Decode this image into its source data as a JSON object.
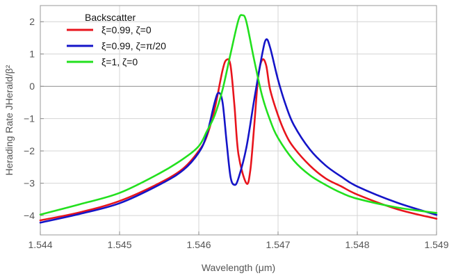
{
  "chart_data": {
    "type": "line",
    "title": "",
    "xlabel": "Wavelength (μm)",
    "ylabel": "Herading Rate  JHerald/β²",
    "xlim": [
      1.544,
      1.549
    ],
    "ylim": [
      -4.6,
      2.5
    ],
    "x_ticks": [
      "1.544",
      "1.545",
      "1.546",
      "1.547",
      "1.548",
      "1.549"
    ],
    "y_ticks": [
      "2",
      "1",
      "0",
      "−1",
      "−2",
      "−3",
      "−4"
    ],
    "x_tick_values": [
      1.544,
      1.545,
      1.546,
      1.547,
      1.548,
      1.549
    ],
    "y_tick_values": [
      2,
      1,
      0,
      -1,
      -2,
      -3,
      -4
    ],
    "grid": true,
    "legend": {
      "title": "Backscatter",
      "position": "top-left"
    },
    "series": [
      {
        "name": "ξ=0.99,  ζ=0",
        "color": "#e8141c",
        "x": [
          1.544,
          1.5445,
          1.545,
          1.5455,
          1.5458,
          1.546,
          1.5461,
          1.5462,
          1.5463,
          1.54635,
          1.5464,
          1.54645,
          1.5465,
          1.5466,
          1.54665,
          1.5467,
          1.54675,
          1.5468,
          1.54685,
          1.5469,
          1.547,
          1.5471,
          1.5472,
          1.5474,
          1.5476,
          1.5478,
          1.548,
          1.5485,
          1.549
        ],
        "y": [
          -4.15,
          -3.9,
          -3.55,
          -3.0,
          -2.55,
          -2.0,
          -1.55,
          -0.7,
          0.5,
          0.82,
          0.65,
          -0.6,
          -2.1,
          -3.0,
          -2.6,
          -1.2,
          0.3,
          0.82,
          0.65,
          -0.1,
          -0.9,
          -1.5,
          -1.9,
          -2.45,
          -2.85,
          -3.1,
          -3.35,
          -3.8,
          -4.1
        ]
      },
      {
        "name": "ξ=0.99,  ζ=π/20",
        "color": "#1414c8",
        "x": [
          1.544,
          1.5445,
          1.545,
          1.5455,
          1.5458,
          1.546,
          1.5461,
          1.5462,
          1.54625,
          1.5463,
          1.54635,
          1.5464,
          1.54645,
          1.5465,
          1.5466,
          1.5467,
          1.5468,
          1.54685,
          1.5469,
          1.547,
          1.5471,
          1.5472,
          1.5474,
          1.5476,
          1.5478,
          1.548,
          1.5485,
          1.549
        ],
        "y": [
          -4.22,
          -3.95,
          -3.62,
          -3.05,
          -2.6,
          -2.05,
          -1.5,
          -0.5,
          -0.2,
          -0.5,
          -1.7,
          -2.8,
          -3.05,
          -2.85,
          -1.9,
          -0.4,
          1.0,
          1.45,
          1.2,
          0.2,
          -0.6,
          -1.2,
          -1.95,
          -2.45,
          -2.8,
          -3.1,
          -3.6,
          -3.98
        ]
      },
      {
        "name": "ξ=1,  ζ=0",
        "color": "#22e01e",
        "x": [
          1.544,
          1.5445,
          1.545,
          1.5455,
          1.5458,
          1.546,
          1.5461,
          1.5462,
          1.5463,
          1.5464,
          1.5465,
          1.54655,
          1.5466,
          1.5467,
          1.5468,
          1.5469,
          1.547,
          1.5472,
          1.5474,
          1.5476,
          1.5478,
          1.548,
          1.5485,
          1.549
        ],
        "y": [
          -3.97,
          -3.65,
          -3.3,
          -2.7,
          -2.25,
          -1.85,
          -1.4,
          -0.9,
          -0.1,
          1.0,
          2.05,
          2.2,
          2.0,
          0.8,
          -0.3,
          -1.05,
          -1.6,
          -2.3,
          -2.75,
          -3.05,
          -3.3,
          -3.48,
          -3.75,
          -3.92
        ]
      }
    ]
  }
}
